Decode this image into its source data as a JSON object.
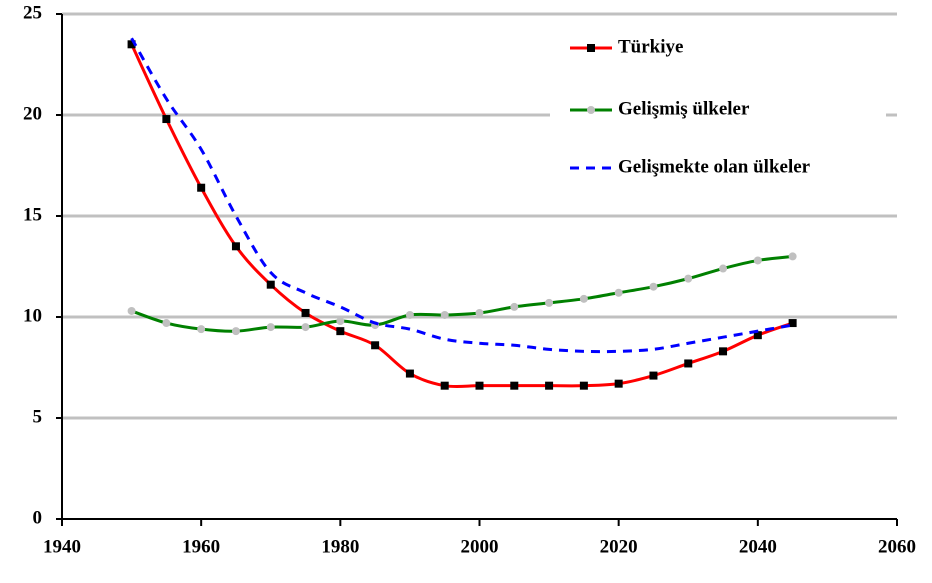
{
  "chart_data": {
    "type": "line",
    "x": [
      1950,
      1955,
      1960,
      1965,
      1970,
      1975,
      1980,
      1985,
      1990,
      1995,
      2000,
      2005,
      2010,
      2015,
      2020,
      2025,
      2030,
      2035,
      2040,
      2045
    ],
    "series": [
      {
        "name": "Türkiye",
        "color": "#ff0000",
        "marker": "square",
        "marker_color": "#000000",
        "dashed": false,
        "values": [
          23.5,
          19.8,
          16.4,
          13.5,
          11.6,
          10.2,
          9.3,
          8.6,
          7.2,
          6.6,
          6.6,
          6.6,
          6.6,
          6.6,
          6.7,
          7.1,
          7.7,
          8.3,
          9.1,
          9.7
        ]
      },
      {
        "name": "Gelişmiş ülkeler",
        "color": "#008000",
        "marker": "circle",
        "marker_color": "#c0c0c0",
        "dashed": false,
        "values": [
          10.3,
          9.7,
          9.4,
          9.3,
          9.5,
          9.5,
          9.8,
          9.6,
          10.1,
          10.1,
          10.2,
          10.5,
          10.7,
          10.9,
          11.2,
          11.5,
          11.9,
          12.4,
          12.8,
          13.0
        ]
      },
      {
        "name": "Gelişmekte olan ülkeler",
        "color": "#0000ff",
        "marker": "none",
        "dashed": true,
        "values": [
          23.8,
          20.8,
          18.3,
          15.0,
          12.2,
          11.2,
          10.5,
          9.7,
          9.4,
          8.9,
          8.7,
          8.6,
          8.4,
          8.3,
          8.3,
          8.4,
          8.7,
          9.0,
          9.3,
          9.6
        ]
      }
    ],
    "xlim": [
      1940,
      2060
    ],
    "xticks": [
      1940,
      1960,
      1980,
      2000,
      2020,
      2040,
      2060
    ],
    "ylim": [
      0,
      25
    ],
    "yticks": [
      0,
      5,
      10,
      15,
      20,
      25
    ],
    "grid": true,
    "legend": "upper right"
  }
}
